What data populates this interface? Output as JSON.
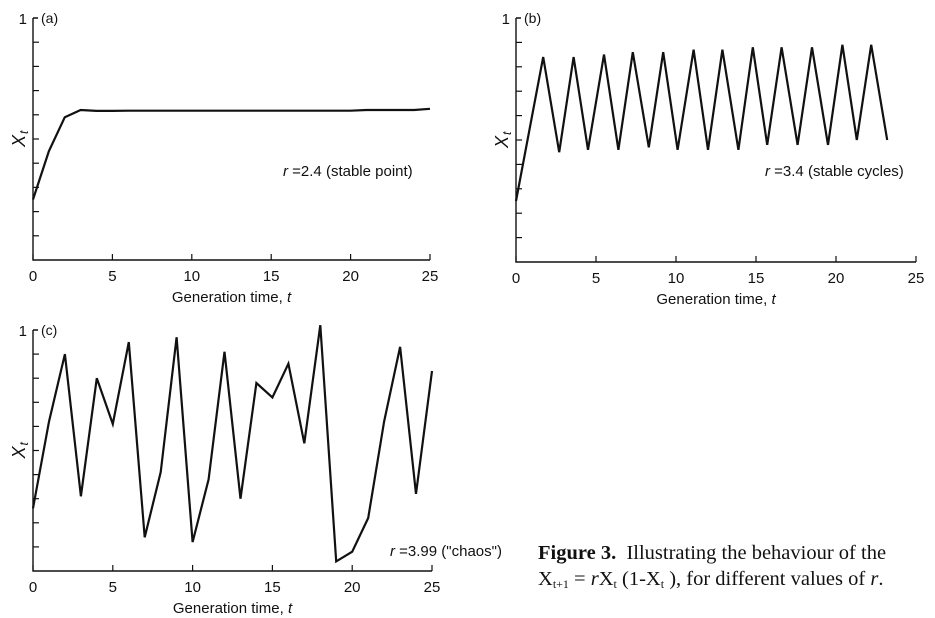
{
  "figure": {
    "caption_label": "Figure 3.",
    "caption_text_1": "Illustrating the behaviour of the",
    "caption_x": "X",
    "caption_sub_t1": "t+1",
    "caption_eq": " = ",
    "caption_r": "r",
    "caption_sub_t": "t",
    "caption_mid": " (1-X",
    "caption_end": " ), for different values of ",
    "caption_r2": "r",
    "caption_period": "."
  },
  "chart_data": [
    {
      "type": "line",
      "panel_label": "(a)",
      "xlabel": "Generation time, ",
      "xlabel_var": "t",
      "ylabel": "X",
      "ylabel_sub": "t",
      "annotation_r": "r",
      "annotation": " =2.4 (stable point)",
      "xlim": [
        0,
        25
      ],
      "ylim": [
        0,
        1
      ],
      "xticks": [
        "0",
        "5",
        "10",
        "15",
        "20",
        "25"
      ],
      "yticks": [
        "1"
      ],
      "series": [
        {
          "x": [
            0,
            1,
            2,
            3,
            4,
            5,
            6,
            7,
            8,
            9,
            10,
            11,
            12,
            13,
            14,
            15,
            16,
            17,
            18,
            19,
            20,
            21,
            22,
            23,
            24,
            25
          ],
          "values": [
            0.25,
            0.45,
            0.59,
            0.62,
            0.616,
            0.616,
            0.617,
            0.617,
            0.617,
            0.617,
            0.617,
            0.617,
            0.617,
            0.617,
            0.617,
            0.617,
            0.617,
            0.617,
            0.617,
            0.617,
            0.617,
            0.62,
            0.62,
            0.62,
            0.62,
            0.625
          ]
        }
      ]
    },
    {
      "type": "line",
      "panel_label": "(b)",
      "xlabel": "Generation time, ",
      "xlabel_var": "t",
      "ylabel": "X",
      "ylabel_sub": "t",
      "annotation_r": "r",
      "annotation": " =3.4 (stable cycles)",
      "xlim": [
        0,
        25
      ],
      "ylim": [
        0,
        1
      ],
      "xticks": [
        "0",
        "5",
        "10",
        "15",
        "20",
        "25"
      ],
      "yticks": [
        "1"
      ],
      "series": [
        {
          "x": [
            0,
            1.7,
            2.7,
            3.6,
            4.5,
            5.5,
            6.4,
            7.3,
            8.3,
            9.2,
            10.1,
            11.1,
            12.0,
            12.9,
            13.9,
            14.8,
            15.7,
            16.6,
            17.6,
            18.5,
            19.5,
            20.4,
            21.3,
            22.2,
            23.2
          ],
          "values": [
            0.25,
            0.84,
            0.45,
            0.84,
            0.46,
            0.85,
            0.46,
            0.86,
            0.47,
            0.86,
            0.46,
            0.87,
            0.46,
            0.87,
            0.46,
            0.88,
            0.48,
            0.88,
            0.48,
            0.88,
            0.48,
            0.89,
            0.5,
            0.89,
            0.5
          ]
        }
      ]
    },
    {
      "type": "line",
      "panel_label": "(c)",
      "xlabel": "Generation time, ",
      "xlabel_var": "t",
      "ylabel": "X",
      "ylabel_sub": "t",
      "annotation_r": "r",
      "annotation": " =3.99 (\"chaos\")",
      "xlim": [
        0,
        25
      ],
      "ylim": [
        0,
        1
      ],
      "xticks": [
        "0",
        "5",
        "10",
        "15",
        "20",
        "25"
      ],
      "yticks": [
        "1"
      ],
      "series": [
        {
          "x": [
            0,
            1,
            2,
            3,
            4,
            5,
            6,
            7,
            8,
            9,
            10,
            11,
            12,
            13,
            14,
            15,
            16,
            17,
            18,
            19,
            20,
            21,
            22,
            23,
            24,
            25
          ],
          "values": [
            0.26,
            0.62,
            0.9,
            0.31,
            0.8,
            0.61,
            0.95,
            0.14,
            0.41,
            0.97,
            0.12,
            0.38,
            0.91,
            0.3,
            0.78,
            0.72,
            0.86,
            0.53,
            1.02,
            0.04,
            0.08,
            0.22,
            0.62,
            0.93,
            0.32,
            0.83
          ]
        }
      ]
    }
  ]
}
